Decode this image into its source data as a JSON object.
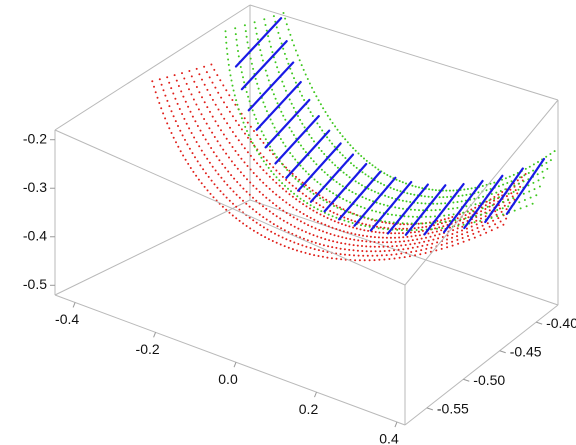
{
  "chart_data": {
    "type": "scatter",
    "projection": "3d",
    "axes": {
      "x": {
        "range": [
          -0.45,
          0.42
        ],
        "ticks": [
          -0.4,
          -0.2,
          0.0,
          0.2,
          0.4
        ],
        "tick_labels": [
          "-0.4",
          "-0.2",
          "0.0",
          "0.2",
          "0.4"
        ]
      },
      "y": {
        "range": [
          -0.58,
          -0.37
        ],
        "ticks": [
          -0.55,
          -0.5,
          -0.45,
          -0.4
        ],
        "tick_labels": [
          "-0.55",
          "-0.50",
          "-0.45",
          "-0.40"
        ]
      },
      "z": {
        "range": [
          -0.52,
          -0.18
        ],
        "ticks": [
          -0.5,
          -0.4,
          -0.3,
          -0.2
        ],
        "tick_labels": [
          "-0.5",
          "-0.4",
          "-0.3",
          "-0.2"
        ]
      }
    },
    "series": [
      {
        "style": "dotted",
        "color": "#e0201b",
        "count": 9,
        "start": [
          -0.36,
          -0.48,
          -0.16
        ],
        "dip": [
          -0.04,
          -0.5,
          -0.52
        ],
        "end": [
          0.36,
          -0.4,
          -0.32
        ],
        "spread": 0.05
      },
      {
        "style": "dotted",
        "color": "#3fc81f",
        "count": 7,
        "start": [
          -0.36,
          -0.4,
          -0.16
        ],
        "dip": [
          -0.06,
          -0.47,
          -0.48
        ],
        "end": [
          0.4,
          -0.38,
          -0.3
        ],
        "spread": 0.05
      },
      {
        "style": "segments",
        "color": "#1a1ae6",
        "count": 20,
        "length": 0.05
      }
    ],
    "grid": false,
    "legend": "none",
    "colors": {
      "red_series": "#e0201b",
      "green_series": "#3fc81f",
      "blue_segments": "#1a1ae6",
      "box": "#b9b9b9"
    }
  }
}
